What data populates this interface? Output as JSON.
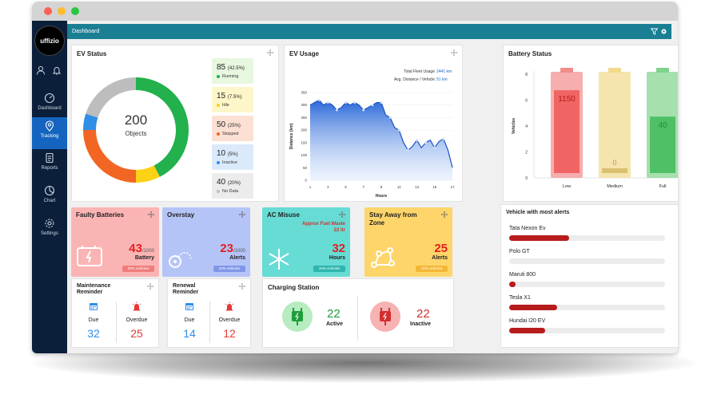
{
  "brand": {
    "logo_text": "uffizio"
  },
  "sidebar": {
    "items": [
      {
        "label": "Dashboard",
        "icon": "speedometer-icon",
        "active": false
      },
      {
        "label": "Tracking",
        "icon": "location-pin-icon",
        "active": true
      },
      {
        "label": "Reports",
        "icon": "document-icon",
        "active": false
      },
      {
        "label": "Chart",
        "icon": "pie-chart-icon",
        "active": false
      },
      {
        "label": "Settings",
        "icon": "gear-icon",
        "active": false
      }
    ]
  },
  "header": {
    "title": "Dashboard",
    "icons": [
      "filter-icon",
      "settings-icon"
    ]
  },
  "ev_status": {
    "title": "EV Status",
    "center_number": "200",
    "center_label": "Objects",
    "items": [
      {
        "count": "85",
        "pct": "(42.5%)",
        "label": "Running",
        "value": 85,
        "color": "#22b14c",
        "bg": "#e8f7df"
      },
      {
        "count": "15",
        "pct": "(7.5%)",
        "label": "Idle",
        "value": 15,
        "color": "#fcd116",
        "bg": "#fdf6c8"
      },
      {
        "count": "50",
        "pct": "(25%)",
        "label": "Stopped",
        "value": 50,
        "color": "#f26522",
        "bg": "#fde0d4"
      },
      {
        "count": "10",
        "pct": "(5%)",
        "label": "Inactive",
        "value": 10,
        "color": "#2f8ee8",
        "bg": "#dbeafb"
      },
      {
        "count": "40",
        "pct": "(20%)",
        "label": "No Data",
        "value": 40,
        "color": "#bdbdbd",
        "bg": "#ececec"
      }
    ]
  },
  "ev_usage": {
    "title": "EV Usage",
    "total_label": "Total Fleet Usage",
    "total_value": "2441 km",
    "avg_label": "Avg. Distance / Vehicle",
    "avg_value": "51 km"
  },
  "chart_data": [
    {
      "type": "area",
      "xlabel": "Hours",
      "ylabel": "Distance (km)",
      "x_ticks": [
        "1",
        "3",
        "5",
        "7",
        "9",
        "11",
        "13",
        "15",
        "17"
      ],
      "y_ticks": [
        "0",
        "50",
        "100",
        "150",
        "200",
        "250",
        "300",
        "350"
      ],
      "ylim": [
        0,
        350
      ],
      "x": [
        1,
        1.5,
        2,
        2.5,
        3,
        3.5,
        4,
        4.5,
        5,
        5.5,
        6,
        6.5,
        7,
        7.5,
        8,
        8.5,
        9,
        9.5,
        10,
        10.5,
        11,
        11.5,
        12,
        12.5,
        13,
        13.5,
        14,
        14.5,
        15,
        15.5,
        16,
        16.5,
        17
      ],
      "values": [
        300,
        310,
        320,
        300,
        310,
        300,
        280,
        290,
        310,
        300,
        310,
        300,
        280,
        290,
        300,
        310,
        310,
        260,
        250,
        210,
        200,
        150,
        120,
        135,
        160,
        130,
        150,
        160,
        130,
        155,
        165,
        120,
        50
      ]
    },
    {
      "type": "bar",
      "categories": [
        "Low",
        "Medium",
        "Full"
      ],
      "values": [
        1150,
        0,
        40
      ],
      "y_ticks": [
        "0",
        "2",
        "4",
        "6",
        "8"
      ],
      "ylabel": "Vehicles",
      "colors": [
        "#f28b8b",
        "#f2d98b",
        "#7fd38a"
      ],
      "fill_levels": [
        0.88,
        0.05,
        0.6
      ]
    },
    {
      "type": "bar",
      "title": "Vehicle with most alerts",
      "categories": [
        "Tata Nexon Ev",
        "Polo GT",
        "Maruti 800",
        "Tesla X1",
        "Hundai I20 EV"
      ],
      "values": [
        50,
        0,
        5,
        40,
        30
      ],
      "max": 130
    }
  ],
  "battery": {
    "title": "Battery Status"
  },
  "tiles": [
    {
      "title": "Faulty Batteries",
      "number": "43",
      "sub": "/1000",
      "label": "Battery",
      "pill": "20% vehicles",
      "bg": "#fbb4b4",
      "numcolor": "#e41e1e",
      "pillbg": "#f07d7d",
      "icon": "battery-icon"
    },
    {
      "title": "Overstay",
      "number": "23",
      "sub": "/1000",
      "label": "Alerts",
      "pill": "10% vehicles",
      "bg": "#b5c4f7",
      "numcolor": "#e41e1e",
      "pillbg": "#8097e8",
      "icon": "map-route-icon"
    },
    {
      "title": "AC Misuse",
      "number": "32",
      "sub": "",
      "label": "Hours",
      "pill": "10% vehicles",
      "bg": "#66dcd4",
      "numcolor": "#e41e1e",
      "pillbg": "#2fb5ad",
      "icon": "snowflake-icon",
      "note": "Approx Fuel Waste",
      "note2": "22 ltr"
    },
    {
      "title": "Stay Away from Zone",
      "number": "25",
      "sub": "",
      "label": "Alerts",
      "pill": "10% vehicles",
      "bg": "#fdd56a",
      "numcolor": "#e41e1e",
      "pillbg": "#f2b835",
      "icon": "route-nodes-icon"
    }
  ],
  "reminders": [
    {
      "title": "Maintenance Reminder",
      "due_label": "Due",
      "due": "32",
      "overdue_label": "Overdue",
      "overdue": "25"
    },
    {
      "title": "Renewal Reminder",
      "due_label": "Due",
      "due": "14",
      "overdue_label": "Overdue",
      "overdue": "12"
    }
  ],
  "charging": {
    "title": "Charging Station",
    "active": "22",
    "active_label": "Active",
    "inactive": "22",
    "inactive_label": "Inactive"
  },
  "alerts": {
    "title": "Vehicle with most alerts"
  }
}
